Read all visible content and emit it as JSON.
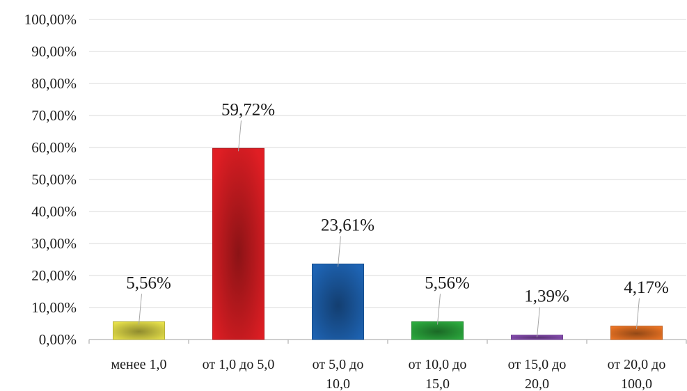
{
  "chart_data": {
    "type": "bar",
    "categories": [
      [
        "менее 1,0"
      ],
      [
        "от 1,0 до 5,0"
      ],
      [
        "от 5,0 до",
        "10,0"
      ],
      [
        "от 10,0 до",
        "15,0"
      ],
      [
        "от 15,0 до",
        "20,0"
      ],
      [
        "от 20,0 до",
        "100,0"
      ]
    ],
    "values": [
      5.56,
      59.72,
      23.61,
      5.56,
      1.39,
      4.17
    ],
    "data_labels": [
      "5,56%",
      "59,72%",
      "23,61%",
      "5,56%",
      "1,39%",
      "4,17%"
    ],
    "colors": [
      "#e6e04a",
      "#e01e24",
      "#1e64b4",
      "#2caa3e",
      "#8a4fb4",
      "#ec7424"
    ],
    "ylim": [
      0,
      100
    ],
    "y_ticks": [
      0,
      10,
      20,
      30,
      40,
      50,
      60,
      70,
      80,
      90,
      100
    ],
    "y_tick_labels": [
      "0,00%",
      "10,00%",
      "20,00%",
      "30,00%",
      "40,00%",
      "50,00%",
      "60,00%",
      "70,00%",
      "80,00%",
      "90,00%",
      "100,00%"
    ],
    "grid": true,
    "title": "",
    "xlabel": "",
    "ylabel": ""
  }
}
